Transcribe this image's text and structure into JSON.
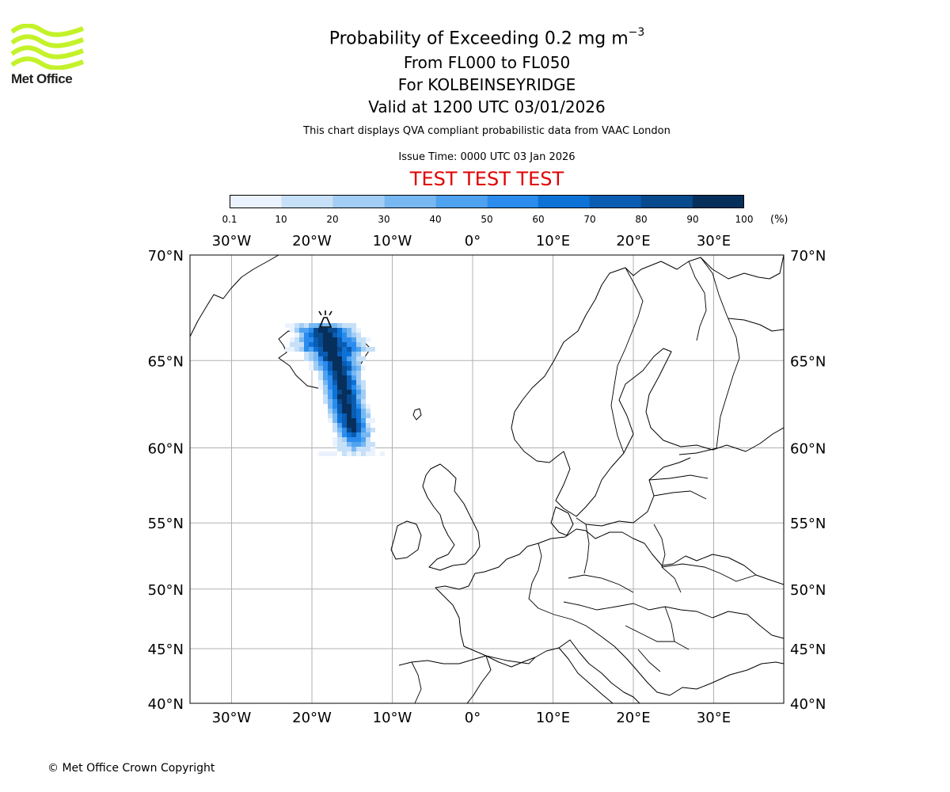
{
  "logo": {
    "text": "Met Office",
    "color": "#b5e62e"
  },
  "title": {
    "line1_main": "Probability of Exceeding 0.2 mg m",
    "line1_sup": "−3",
    "line2": "From FL000 to FL050",
    "line3": "For KOLBEINSEYRIDGE",
    "line4": "Valid at 1200 UTC 03/01/2026"
  },
  "subtitle": "This chart displays QVA compliant probabilistic data from VAAC London",
  "issue_time": "Issue Time: 0000 UTC 03 Jan 2026",
  "test_banner": "TEST TEST TEST",
  "test_color": "#e00000",
  "colorbar": {
    "ticks": [
      "0.1",
      "10",
      "20",
      "30",
      "40",
      "50",
      "60",
      "70",
      "80",
      "90",
      "100"
    ],
    "unit": "(%)",
    "colors": [
      "#eaf3fd",
      "#c6e0f8",
      "#a2cdf5",
      "#78b8f2",
      "#4ea2f0",
      "#2b8cee",
      "#0d72d6",
      "#0a5cb2",
      "#084a8e",
      "#062f5c"
    ]
  },
  "map": {
    "lon_labels": [
      "30°W",
      "20°W",
      "10°W",
      "0°",
      "10°E",
      "20°E",
      "30°E"
    ],
    "lon_values": [
      -30,
      -20,
      -10,
      0,
      10,
      20,
      30
    ],
    "lat_labels": [
      "70°N",
      "65°N",
      "60°N",
      "55°N",
      "50°N",
      "45°N",
      "40°N"
    ],
    "lat_values": [
      70,
      65,
      60,
      55,
      50,
      45,
      40
    ],
    "lon_range": [
      -35,
      39
    ],
    "lat_range": [
      40,
      70
    ],
    "projection": "mercator",
    "gridlines": true,
    "volcano": {
      "lon": -18.5,
      "lat": 67.1
    },
    "plume_color": "#084a8e"
  },
  "copyright": "© Met Office Crown Copyright"
}
